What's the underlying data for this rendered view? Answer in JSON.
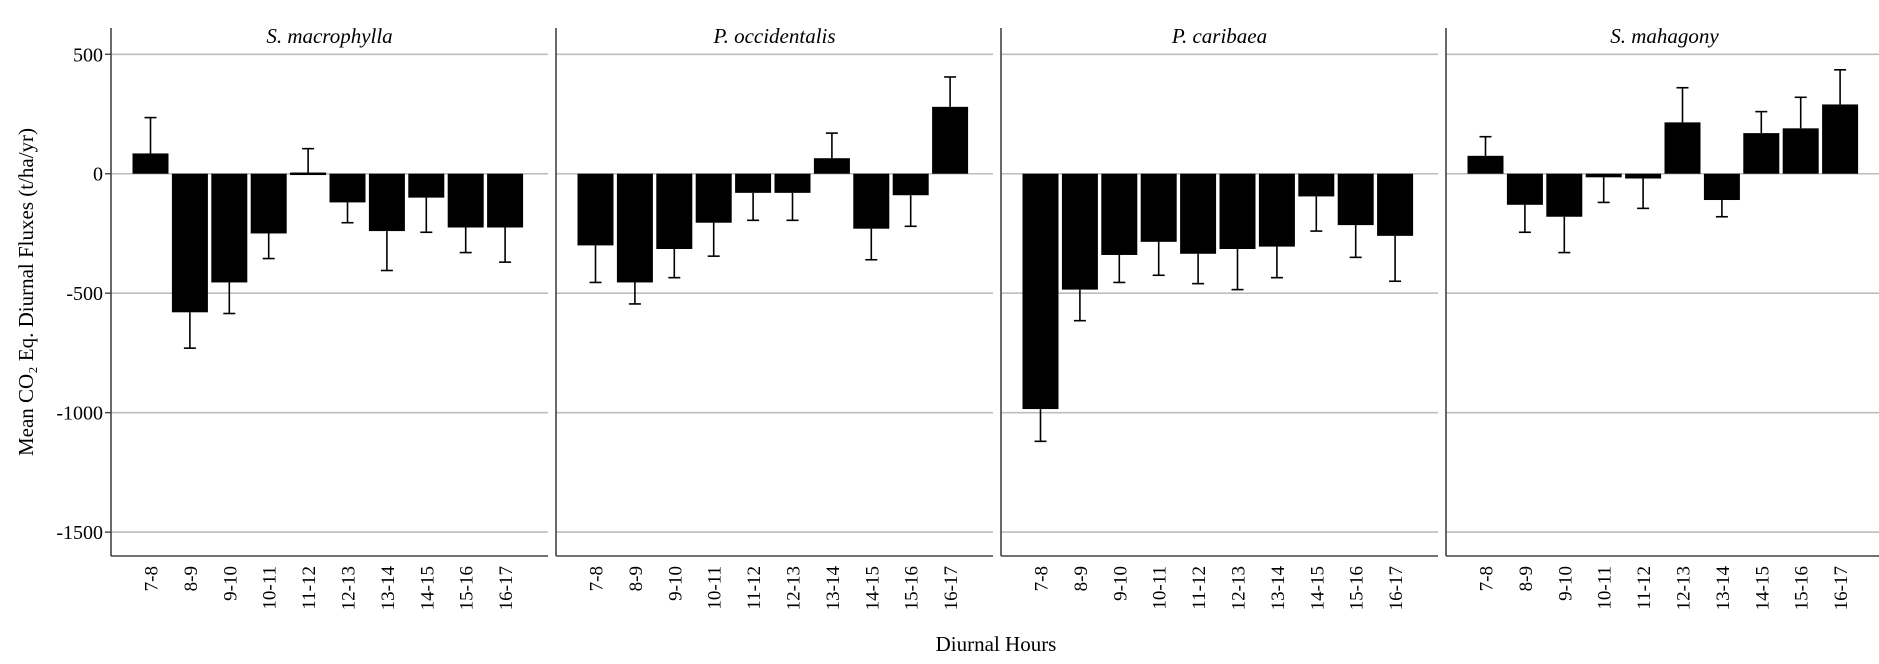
{
  "chart_data": {
    "type": "bar",
    "xlabel": "Diurnal Hours",
    "ylabel": "Mean CO₂ Eq. Diurnal Fluxes (t/ha/yr)",
    "ylim": [
      -1600,
      610
    ],
    "yticks": [
      500,
      0,
      -500,
      -1000,
      -1500
    ],
    "grid": true,
    "categories": [
      "7-8",
      "8-9",
      "9-10",
      "10-11",
      "11-12",
      "12-13",
      "13-14",
      "14-15",
      "15-16",
      "16-17"
    ],
    "panels": [
      {
        "title": "S. macrophylla",
        "values": [
          85,
          -580,
          -455,
          -250,
          5,
          -120,
          -240,
          -100,
          -225,
          -225
        ],
        "error": [
          150,
          150,
          130,
          105,
          100,
          85,
          165,
          145,
          105,
          145
        ]
      },
      {
        "title": "P. occidentalis",
        "values": [
          -300,
          -455,
          -315,
          -205,
          -80,
          -80,
          65,
          -230,
          -90,
          280
        ],
        "error": [
          155,
          90,
          120,
          140,
          115,
          115,
          105,
          130,
          130,
          125
        ]
      },
      {
        "title": "P. caribaea",
        "values": [
          -985,
          -485,
          -340,
          -285,
          -335,
          -315,
          -305,
          -95,
          -215,
          -260
        ],
        "error": [
          135,
          130,
          115,
          140,
          125,
          170,
          130,
          145,
          135,
          190
        ]
      },
      {
        "title": "S. mahagony",
        "values": [
          75,
          -130,
          -180,
          -15,
          -20,
          215,
          -110,
          170,
          190,
          290
        ],
        "error": [
          80,
          115,
          150,
          105,
          125,
          145,
          70,
          90,
          130,
          145
        ]
      }
    ]
  }
}
